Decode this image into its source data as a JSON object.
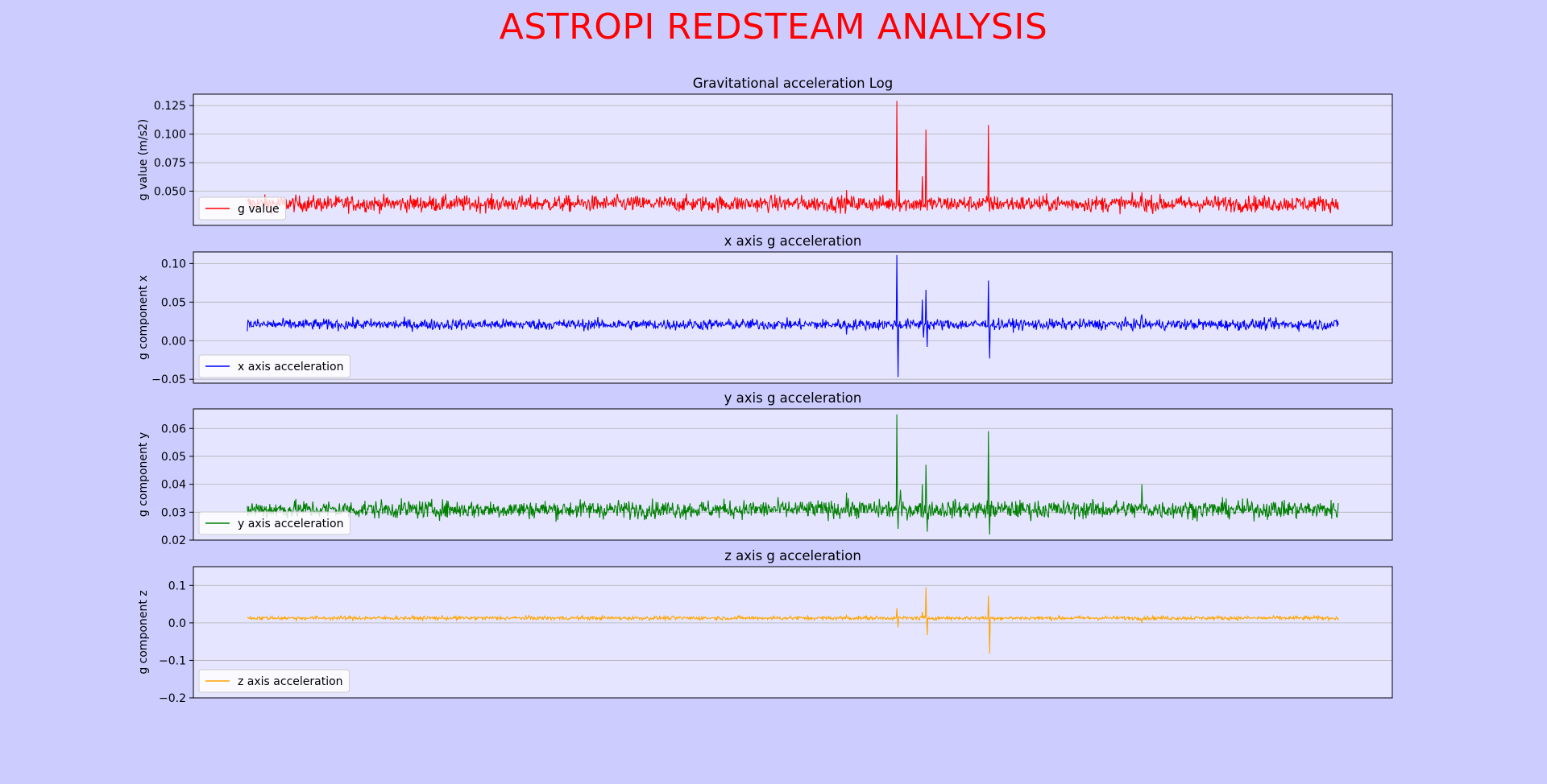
{
  "page_title": "ASTROPI REDSTEAM ANALYSIS",
  "colors": {
    "figure_bg": "#ccccff",
    "axes_bg": "#e5e5ff",
    "title": "#ff0000",
    "grid": "#b0b0b0"
  },
  "chart_data": [
    {
      "type": "line",
      "title": "Gravitational acceleration Log",
      "ylabel": "g value (m/s2)",
      "xlabel": "",
      "ylim": [
        0.02,
        0.135
      ],
      "yticks": [
        0.05,
        0.075,
        0.1,
        0.125
      ],
      "ytick_labels": [
        "0.050",
        "0.075",
        "0.100",
        "0.125"
      ],
      "grid": true,
      "legend": "lower-left",
      "xlim": [
        0,
        1
      ],
      "series": [
        {
          "name": "g value",
          "color": "#ff0000",
          "baseline": 0.039,
          "noise": 0.0035,
          "x_range": [
            0.045,
            0.955
          ],
          "spikes": [
            {
              "x": 0.545,
              "v": 0.051
            },
            {
              "x": 0.587,
              "v": 0.129
            },
            {
              "x": 0.589,
              "v": 0.051
            },
            {
              "x": 0.608,
              "v": 0.063
            },
            {
              "x": 0.611,
              "v": 0.104
            },
            {
              "x": 0.612,
              "v": 0.033
            },
            {
              "x": 0.663,
              "v": 0.108
            },
            {
              "x": 0.664,
              "v": 0.032
            },
            {
              "x": 0.791,
              "v": 0.049
            }
          ]
        }
      ]
    },
    {
      "type": "line",
      "title": "x axis g acceleration",
      "ylabel": "g component x",
      "xlabel": "",
      "ylim": [
        -0.055,
        0.115
      ],
      "yticks": [
        -0.05,
        0.0,
        0.05,
        0.1
      ],
      "ytick_labels": [
        "−0.05",
        "0.00",
        "0.05",
        "0.10"
      ],
      "grid": true,
      "legend": "lower-left",
      "xlim": [
        0,
        1
      ],
      "series": [
        {
          "name": "x axis acceleration",
          "color": "#0000ff",
          "baseline": 0.021,
          "noise": 0.0035,
          "x_range": [
            0.045,
            0.955
          ],
          "spikes": [
            {
              "x": 0.545,
              "v": 0.008
            },
            {
              "x": 0.587,
              "v": 0.111
            },
            {
              "x": 0.588,
              "v": -0.047
            },
            {
              "x": 0.608,
              "v": 0.053
            },
            {
              "x": 0.609,
              "v": 0.004
            },
            {
              "x": 0.611,
              "v": 0.066
            },
            {
              "x": 0.612,
              "v": -0.008
            },
            {
              "x": 0.663,
              "v": 0.078
            },
            {
              "x": 0.664,
              "v": -0.023
            },
            {
              "x": 0.791,
              "v": 0.034
            }
          ]
        }
      ]
    },
    {
      "type": "line",
      "title": "y axis g acceleration",
      "ylabel": "g component y",
      "xlabel": "",
      "ylim": [
        0.02,
        0.067
      ],
      "yticks": [
        0.02,
        0.03,
        0.04,
        0.05,
        0.06
      ],
      "ytick_labels": [
        "0.02",
        "0.03",
        "0.04",
        "0.05",
        "0.06"
      ],
      "grid": true,
      "legend": "lower-left",
      "xlim": [
        0,
        1
      ],
      "series": [
        {
          "name": "y axis acceleration",
          "color": "#008000",
          "baseline": 0.031,
          "noise": 0.0016,
          "x_range": [
            0.045,
            0.955
          ],
          "spikes": [
            {
              "x": 0.545,
              "v": 0.037
            },
            {
              "x": 0.587,
              "v": 0.065
            },
            {
              "x": 0.588,
              "v": 0.024
            },
            {
              "x": 0.59,
              "v": 0.038
            },
            {
              "x": 0.608,
              "v": 0.04
            },
            {
              "x": 0.611,
              "v": 0.047
            },
            {
              "x": 0.612,
              "v": 0.023
            },
            {
              "x": 0.663,
              "v": 0.059
            },
            {
              "x": 0.664,
              "v": 0.022
            },
            {
              "x": 0.791,
              "v": 0.04
            }
          ]
        }
      ]
    },
    {
      "type": "line",
      "title": "z axis g acceleration",
      "ylabel": "g component z",
      "xlabel": "",
      "ylim": [
        -0.2,
        0.15
      ],
      "yticks": [
        -0.2,
        -0.1,
        0.0,
        0.1
      ],
      "ytick_labels": [
        "−0.2",
        "−0.1",
        "0.0",
        "0.1"
      ],
      "grid": true,
      "legend": "lower-left",
      "xlim": [
        0,
        1
      ],
      "series": [
        {
          "name": "z axis acceleration",
          "color": "#ffa500",
          "baseline": 0.013,
          "noise": 0.0025,
          "x_range": [
            0.045,
            0.955
          ],
          "spikes": [
            {
              "x": 0.545,
              "v": 0.02
            },
            {
              "x": 0.587,
              "v": 0.04
            },
            {
              "x": 0.588,
              "v": -0.012
            },
            {
              "x": 0.608,
              "v": 0.03
            },
            {
              "x": 0.611,
              "v": 0.095
            },
            {
              "x": 0.612,
              "v": -0.033
            },
            {
              "x": 0.663,
              "v": 0.073
            },
            {
              "x": 0.664,
              "v": -0.082
            },
            {
              "x": 0.791,
              "v": 0.0
            }
          ]
        }
      ]
    }
  ]
}
